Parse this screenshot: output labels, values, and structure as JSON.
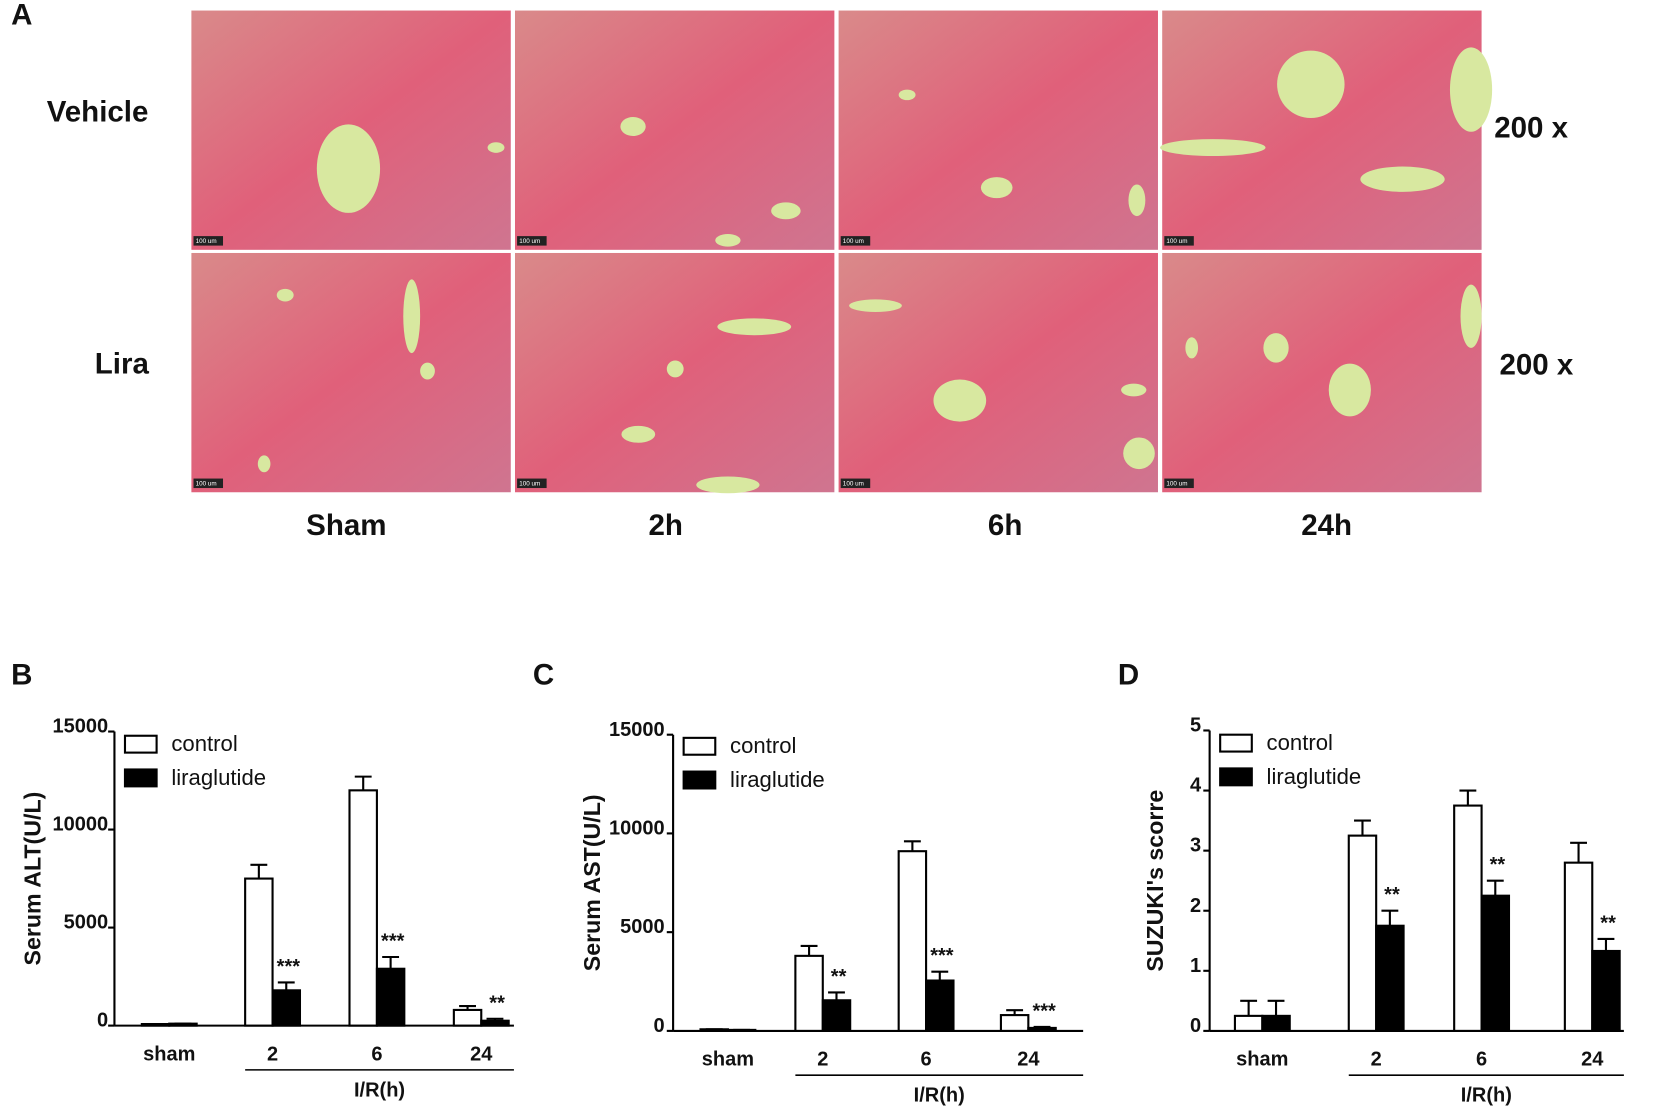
{
  "panel_a": {
    "label": "A",
    "rows": [
      "Vehicle",
      "Lira"
    ],
    "magnification": [
      "200 x",
      "200 x"
    ],
    "columns": [
      "Sham",
      "2h",
      "6h",
      "24h"
    ],
    "scale_bar": "100 um"
  },
  "chart_data": [
    {
      "type": "bar",
      "label": "B",
      "ylabel": "Serum ALT(U/L)",
      "xlabel": "I/R(h)",
      "categories": [
        "sham",
        "2",
        "6",
        "24"
      ],
      "ylim": [
        0,
        15000
      ],
      "yticks": [
        0,
        5000,
        10000,
        15000
      ],
      "series": [
        {
          "name": "control",
          "color": "#ffffff",
          "values": [
            80,
            7500,
            12000,
            800
          ],
          "errors": [
            0,
            700,
            700,
            200
          ]
        },
        {
          "name": "liraglutide",
          "color": "#000000",
          "values": [
            100,
            1800,
            2900,
            250
          ],
          "errors": [
            0,
            400,
            600,
            100
          ]
        }
      ],
      "significance": [
        null,
        "***",
        "***",
        "**"
      ]
    },
    {
      "type": "bar",
      "label": "C",
      "ylabel": "Serum AST(U/L)",
      "xlabel": "I/R(h)",
      "categories": [
        "sham",
        "2",
        "6",
        "24"
      ],
      "ylim": [
        0,
        15000
      ],
      "yticks": [
        0,
        5000,
        10000,
        15000
      ],
      "series": [
        {
          "name": "control",
          "color": "#ffffff",
          "values": [
            80,
            3800,
            9100,
            800
          ],
          "errors": [
            0,
            500,
            500,
            250
          ]
        },
        {
          "name": "liraglutide",
          "color": "#000000",
          "values": [
            50,
            1550,
            2550,
            150
          ],
          "errors": [
            0,
            400,
            450,
            50
          ]
        }
      ],
      "significance": [
        null,
        "**",
        "***",
        "***"
      ]
    },
    {
      "type": "bar",
      "label": "D",
      "ylabel": "SUZUKI's scorre",
      "xlabel": "I/R(h)",
      "categories": [
        "sham",
        "2",
        "6",
        "24"
      ],
      "ylim": [
        0,
        5
      ],
      "yticks": [
        0,
        1,
        2,
        3,
        4,
        5
      ],
      "series": [
        {
          "name": "control",
          "color": "#ffffff",
          "values": [
            0.25,
            3.25,
            3.75,
            2.8
          ],
          "errors": [
            0.25,
            0.25,
            0.25,
            0.33
          ]
        },
        {
          "name": "liraglutide",
          "color": "#000000",
          "values": [
            0.25,
            1.75,
            2.25,
            1.33
          ],
          "errors": [
            0.25,
            0.25,
            0.25,
            0.2
          ]
        }
      ],
      "significance": [
        null,
        "**",
        "**",
        "**"
      ]
    }
  ]
}
